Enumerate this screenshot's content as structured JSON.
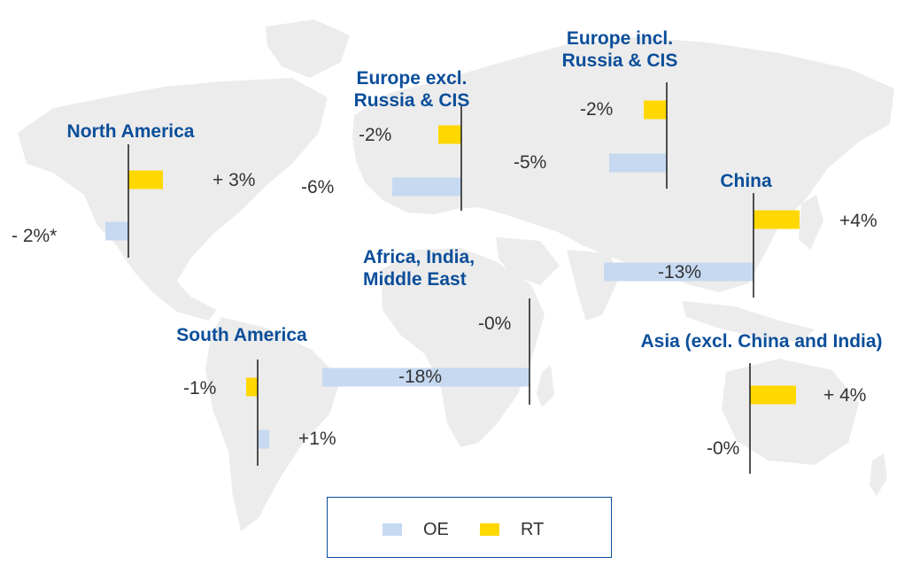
{
  "chart_data": {
    "type": "bar",
    "orientation": "horizontal",
    "legend": [
      {
        "key": "OE",
        "label": "OE",
        "color": "#c6d9f1"
      },
      {
        "key": "RT",
        "label": "RT",
        "color": "#ffd800"
      }
    ],
    "legend_position": "bottom-center",
    "grid": false,
    "regions": [
      {
        "id": "north-america",
        "title": [
          "North America"
        ],
        "RT": 3,
        "OE": -2,
        "RT_label": "+ 3%",
        "OE_label": "- 2%*"
      },
      {
        "id": "europe-excl",
        "title": [
          "Europe excl.",
          "Russia & CIS"
        ],
        "RT": -2,
        "OE": -6,
        "RT_label": "-2%",
        "OE_label": "-6%"
      },
      {
        "id": "europe-incl",
        "title": [
          "Europe incl.",
          "Russia & CIS"
        ],
        "RT": -2,
        "OE": -5,
        "RT_label": "-2%",
        "OE_label": "-5%"
      },
      {
        "id": "china",
        "title": [
          "China"
        ],
        "RT": 4,
        "OE": -13,
        "RT_label": "+4%",
        "OE_label": "-13%"
      },
      {
        "id": "africa-india-me",
        "title": [
          "Africa, India,",
          "Middle East"
        ],
        "RT": 0,
        "OE": -18,
        "RT_label": "-0%",
        "OE_label": "-18%"
      },
      {
        "id": "south-america",
        "title": [
          "South America"
        ],
        "RT": -1,
        "OE": 1,
        "RT_label": "-1%",
        "OE_label": "+1%"
      },
      {
        "id": "asia",
        "title": [
          "Asia (excl. China and India)"
        ],
        "RT": 4,
        "OE": 0,
        "RT_label": "+ 4%",
        "OE_label": "-0%"
      }
    ]
  }
}
